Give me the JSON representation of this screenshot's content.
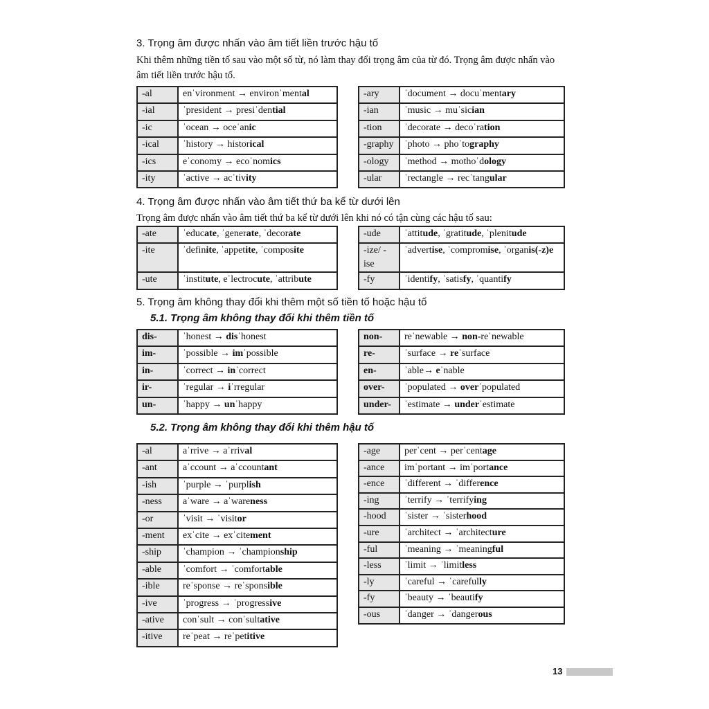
{
  "section3": {
    "heading": "3. Trọng âm được nhấn vào âm tiết liền trước hậu tố",
    "paragraph": "Khi thêm những tiền tố sau vào một số từ, nó làm thay đổi trọng âm của từ đó. Trọng âm được nhấn vào âm tiết liền trước hậu tố.",
    "left": [
      {
        "suffix": "-al",
        "example": [
          "enˈvironment → environˈment",
          "al"
        ]
      },
      {
        "suffix": "-ial",
        "example": [
          "ˈpresident → presiˈden",
          "tial"
        ]
      },
      {
        "suffix": "-ic",
        "example": [
          "ˈocean → oceˈan",
          "ic"
        ]
      },
      {
        "suffix": "-ical",
        "example": [
          "ˈhistory → histor",
          "ical"
        ]
      },
      {
        "suffix": "-ics",
        "example": [
          "eˈconomy → ecoˈnom",
          "ics"
        ]
      },
      {
        "suffix": "-ity",
        "example": [
          "ˈactive → acˈtiv",
          "ity"
        ]
      }
    ],
    "right": [
      {
        "suffix": "-ary",
        "example": [
          "ˈdocument → docuˈment",
          "ary"
        ]
      },
      {
        "suffix": "-ian",
        "example": [
          "ˈmusic → muˈsic",
          "ian"
        ]
      },
      {
        "suffix": "-tion",
        "example": [
          "ˈdecorate → decoˈra",
          "tion"
        ]
      },
      {
        "suffix": "-graphy",
        "example": [
          "ˈphoto → phoˈto",
          "graphy"
        ]
      },
      {
        "suffix": "-ology",
        "example": [
          "ˈmethod → mothoˈd",
          "ology"
        ]
      },
      {
        "suffix": "-ular",
        "example": [
          "ˈrectangle → recˈtang",
          "ular"
        ]
      }
    ]
  },
  "section4": {
    "heading": "4. Trọng âm được nhấn vào âm tiết thứ ba kể từ dưới lên",
    "paragraph": "Trọng âm được nhấn vào âm tiết thứ ba kể từ dưới lên khi nó có tận cùng các hậu tố sau:",
    "left": [
      {
        "suffix": "-ate",
        "example": [
          "ˈeduc",
          "ate",
          ", ˈgener",
          "ate",
          ", ˈdecor",
          "ate"
        ]
      },
      {
        "suffix": "-ite",
        "example": [
          "ˈdefin",
          "ite",
          ", ˈappet",
          "ite",
          ", ˈcompos",
          "ite"
        ],
        "tall": true
      },
      {
        "suffix": "-ute",
        "example": [
          "ˈinstit",
          "ute",
          ", eˈlectroc",
          "ute",
          ", ˈattrib",
          "ute"
        ]
      }
    ],
    "right": [
      {
        "suffix": "-ude",
        "example": [
          "ˈattit",
          "ude",
          ", ˈgratit",
          "ude",
          ", ˈplenit",
          "ude"
        ]
      },
      {
        "suffix": "-ize/ -ise",
        "example": [
          "ˈadvert",
          "ise",
          ", ˈcomprom",
          "ise",
          ", ˈorgan",
          "is(-z)e"
        ],
        "tall": true
      },
      {
        "suffix": "-fy",
        "example": [
          "ˈidenti",
          "fy",
          ", ˈsatis",
          "fy",
          ", ˈquanti",
          "fy"
        ]
      }
    ]
  },
  "section5": {
    "heading": "5. Trọng âm không thay đổi khi thêm một số tiền tố hoặc hậu tố",
    "sub1": "5.1. Trọng âm không thay đổi khi thêm tiền tố",
    "left1": [
      {
        "suffix": "dis-",
        "example": [
          "ˈhonest → ",
          "dis",
          "ˈhonest"
        ]
      },
      {
        "suffix": "im-",
        "example": [
          "ˈpossible → ",
          "im",
          "ˈpossible"
        ]
      },
      {
        "suffix": "in-",
        "example": [
          "ˈcorrect → ",
          "in",
          "ˈcorrect"
        ]
      },
      {
        "suffix": "ir-",
        "example": [
          "ˈregular → ",
          "i",
          "ˈrregular"
        ]
      },
      {
        "suffix": "un-",
        "example": [
          "ˈhappy → ",
          "un",
          "ˈhappy"
        ]
      }
    ],
    "right1": [
      {
        "suffix": "non-",
        "example": [
          "reˈnewable → ",
          "non-",
          "reˈnewable"
        ]
      },
      {
        "suffix": "re-",
        "example": [
          "ˈsurface → ",
          "re",
          "ˈsurface"
        ]
      },
      {
        "suffix": "en-",
        "example": [
          "ˈable→ ",
          "e",
          "ˈnable"
        ]
      },
      {
        "suffix": "over-",
        "example": [
          "ˈpopulated → ",
          "over",
          "ˈpopulated"
        ]
      },
      {
        "suffix": "under-",
        "example": [
          "ˈestimate → ",
          "under",
          "ˈestimate"
        ]
      }
    ],
    "sub2": "5.2. Trọng âm không thay đổi khi thêm hậu tố",
    "left2": [
      {
        "suffix": "-al",
        "example": [
          "aˈrrive → aˈrriv",
          "al"
        ]
      },
      {
        "suffix": "-ant",
        "example": [
          "aˈccount → aˈccount",
          "ant"
        ]
      },
      {
        "suffix": "-ish",
        "example": [
          "ˈpurple → ˈpurpl",
          "ish"
        ]
      },
      {
        "suffix": "-ness",
        "example": [
          "aˈware → aˈware",
          "ness"
        ]
      },
      {
        "suffix": "-or",
        "example": [
          "ˈvisit → ˈvisit",
          "or"
        ]
      },
      {
        "suffix": "-ment",
        "example": [
          "exˈcite → exˈcite",
          "ment"
        ]
      },
      {
        "suffix": "-ship",
        "example": [
          "ˈchampion → ˈchampion",
          "ship"
        ]
      },
      {
        "suffix": "-able",
        "example": [
          "ˈcomfort → ˈcomfort",
          "able"
        ]
      },
      {
        "suffix": "-ible",
        "example": [
          "reˈsponse → reˈspons",
          "ible"
        ]
      },
      {
        "suffix": "-ive",
        "example": [
          "ˈprogress → ˈprogress",
          "ive"
        ]
      },
      {
        "suffix": "-ative",
        "example": [
          "conˈsult → conˈsult",
          "ative"
        ]
      },
      {
        "suffix": "-itive",
        "example": [
          "reˈpeat → reˈpet",
          "itive"
        ]
      }
    ],
    "right2": [
      {
        "suffix": "-age",
        "example": [
          "perˈcent → perˈcent",
          "age"
        ]
      },
      {
        "suffix": "-ance",
        "example": [
          "imˈportant → imˈport",
          "ance"
        ]
      },
      {
        "suffix": "-ence",
        "example": [
          "ˈdifferent → ˈdiffer",
          "ence"
        ]
      },
      {
        "suffix": "-ing",
        "example": [
          "ˈterrify → ˈterrify",
          "ing"
        ]
      },
      {
        "suffix": "-hood",
        "example": [
          "ˈsister → ˈsister",
          "hood"
        ]
      },
      {
        "suffix": "-ure",
        "example": [
          "ˈarchitect → ˈarchitect",
          "ure"
        ]
      },
      {
        "suffix": "-ful",
        "example": [
          "ˈmeaning → ˈmeaning",
          "ful"
        ]
      },
      {
        "suffix": "-less",
        "example": [
          "ˈlimit → ˈlimit",
          "less"
        ]
      },
      {
        "suffix": "-ly",
        "example": [
          "ˈcareful → ˈcareful",
          "ly"
        ]
      },
      {
        "suffix": "-fy",
        "example": [
          "ˈbeauty → ˈbeauti",
          "fy"
        ]
      },
      {
        "suffix": "-ous",
        "example": [
          "ˈdanger → ˈdanger",
          "ous"
        ]
      }
    ]
  },
  "footer": {
    "page_number": "13"
  }
}
